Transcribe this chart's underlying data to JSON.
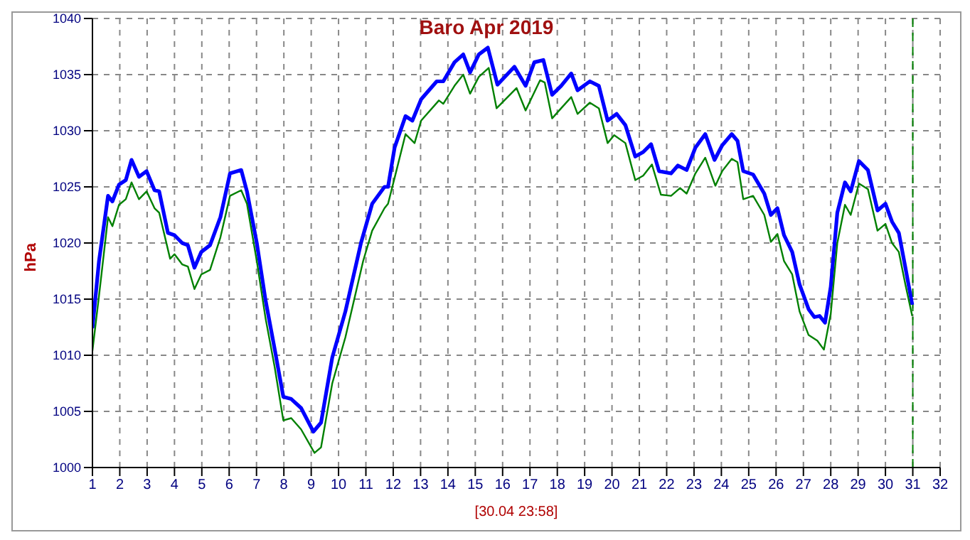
{
  "chart_data": {
    "type": "line",
    "title": "Baro Apr 2019",
    "ylabel": "hPa",
    "xlabel": "[30.04 23:58]",
    "xlim": [
      1,
      32
    ],
    "xticks": [
      1,
      2,
      3,
      4,
      5,
      6,
      7,
      8,
      9,
      10,
      11,
      12,
      13,
      14,
      15,
      16,
      17,
      18,
      19,
      20,
      21,
      22,
      23,
      24,
      25,
      26,
      27,
      28,
      29,
      30,
      31,
      32
    ],
    "ylim": [
      1000,
      1040
    ],
    "yticks": [
      1000,
      1005,
      1010,
      1015,
      1020,
      1025,
      1030,
      1035,
      1040
    ],
    "grid": true,
    "ref_lines": [
      {
        "axis": "x",
        "value": 31,
        "color": "#008000",
        "line_style": "dashed"
      }
    ],
    "series": [
      {
        "color": "#0000ff",
        "x": [
          1.0,
          1.24,
          1.57,
          1.73,
          1.97,
          2.22,
          2.43,
          2.7,
          2.98,
          3.27,
          3.44,
          3.76,
          4.0,
          4.28,
          4.49,
          4.73,
          4.98,
          5.3,
          5.68,
          6.03,
          6.44,
          6.65,
          7.01,
          7.33,
          7.66,
          7.98,
          8.27,
          8.63,
          9.08,
          9.36,
          9.77,
          10.25,
          10.82,
          11.23,
          11.68,
          11.81,
          12.05,
          12.45,
          12.7,
          13.02,
          13.59,
          13.83,
          14.24,
          14.56,
          14.81,
          15.13,
          15.46,
          15.81,
          16.43,
          16.84,
          17.16,
          17.49,
          17.81,
          18.14,
          18.51,
          18.74,
          19.19,
          19.52,
          19.84,
          20.17,
          20.49,
          20.85,
          21.14,
          21.43,
          21.72,
          22.16,
          22.41,
          22.73,
          23.05,
          23.41,
          23.75,
          24.03,
          24.38,
          24.59,
          24.8,
          25.16,
          25.57,
          25.81,
          26.05,
          26.29,
          26.59,
          26.86,
          27.19,
          27.4,
          27.59,
          27.79,
          28.0,
          28.24,
          28.52,
          28.73,
          29.03,
          29.36,
          29.71,
          30.0,
          30.24,
          30.49,
          30.73,
          30.98
        ],
        "values": [
          1012.4,
          1018.4,
          1024.2,
          1023.7,
          1025.2,
          1025.6,
          1027.4,
          1025.9,
          1026.4,
          1024.7,
          1024.6,
          1020.9,
          1020.7,
          1020.0,
          1019.8,
          1017.8,
          1019.2,
          1019.8,
          1022.3,
          1026.2,
          1026.5,
          1024.6,
          1020.0,
          1014.9,
          1010.6,
          1006.3,
          1006.1,
          1005.3,
          1003.2,
          1004.0,
          1009.8,
          1013.9,
          1020.0,
          1023.5,
          1025.0,
          1025.0,
          1028.5,
          1031.3,
          1030.9,
          1032.8,
          1034.4,
          1034.4,
          1036.1,
          1036.8,
          1035.2,
          1036.8,
          1037.4,
          1034.1,
          1035.7,
          1034.0,
          1036.1,
          1036.3,
          1033.2,
          1034.0,
          1035.1,
          1033.6,
          1034.4,
          1034.0,
          1030.9,
          1031.5,
          1030.5,
          1027.7,
          1028.1,
          1028.8,
          1026.4,
          1026.2,
          1026.9,
          1026.5,
          1028.5,
          1029.7,
          1027.4,
          1028.7,
          1029.7,
          1029.1,
          1026.4,
          1026.1,
          1024.4,
          1022.5,
          1023.1,
          1020.7,
          1019.2,
          1016.3,
          1014.1,
          1013.4,
          1013.5,
          1012.9,
          1016.1,
          1022.7,
          1025.4,
          1024.6,
          1027.3,
          1026.5,
          1022.9,
          1023.5,
          1021.9,
          1020.9,
          1017.8,
          1014.5
        ]
      },
      {
        "color": "#008000",
        "x": [
          1.0,
          1.24,
          1.57,
          1.73,
          1.97,
          2.22,
          2.43,
          2.7,
          2.98,
          3.27,
          3.44,
          3.84,
          4.0,
          4.28,
          4.49,
          4.73,
          4.98,
          5.3,
          5.68,
          6.03,
          6.44,
          6.65,
          7.01,
          7.33,
          7.66,
          7.98,
          8.27,
          8.63,
          9.12,
          9.36,
          9.77,
          10.25,
          10.9,
          11.23,
          11.68,
          11.81,
          12.05,
          12.45,
          12.78,
          13.02,
          13.67,
          13.83,
          14.24,
          14.56,
          14.81,
          15.13,
          15.49,
          15.78,
          16.51,
          16.84,
          17.37,
          17.54,
          17.81,
          18.14,
          18.51,
          18.74,
          19.19,
          19.52,
          19.84,
          20.08,
          20.49,
          20.85,
          21.14,
          21.46,
          21.79,
          22.16,
          22.49,
          22.73,
          23.05,
          23.41,
          23.78,
          24.03,
          24.38,
          24.59,
          24.8,
          25.16,
          25.57,
          25.81,
          26.05,
          26.29,
          26.59,
          26.86,
          27.19,
          27.51,
          27.75,
          28.0,
          28.24,
          28.52,
          28.73,
          29.03,
          29.36,
          29.71,
          30.0,
          30.24,
          30.49,
          30.73,
          30.98
        ],
        "values": [
          1010.4,
          1015.3,
          1022.3,
          1021.5,
          1023.4,
          1023.9,
          1025.4,
          1023.9,
          1024.6,
          1023.1,
          1022.7,
          1018.6,
          1019.0,
          1018.1,
          1017.9,
          1015.9,
          1017.2,
          1017.6,
          1020.5,
          1024.2,
          1024.7,
          1023.5,
          1018.4,
          1013.3,
          1009.0,
          1004.2,
          1004.4,
          1003.4,
          1001.3,
          1001.8,
          1007.5,
          1011.6,
          1018.4,
          1021.1,
          1023.1,
          1023.5,
          1025.8,
          1029.7,
          1028.9,
          1030.9,
          1032.7,
          1032.4,
          1034.0,
          1035.0,
          1033.3,
          1034.8,
          1035.6,
          1032.0,
          1033.8,
          1031.8,
          1034.5,
          1034.3,
          1031.1,
          1032.0,
          1033.0,
          1031.5,
          1032.5,
          1032.0,
          1028.9,
          1029.6,
          1028.9,
          1025.6,
          1026.0,
          1027.0,
          1024.3,
          1024.2,
          1024.9,
          1024.4,
          1026.2,
          1027.6,
          1025.1,
          1026.4,
          1027.5,
          1027.2,
          1023.9,
          1024.2,
          1022.5,
          1020.1,
          1020.8,
          1018.4,
          1017.2,
          1013.9,
          1011.8,
          1011.3,
          1010.5,
          1013.7,
          1020.0,
          1023.4,
          1022.5,
          1025.3,
          1024.8,
          1021.1,
          1021.7,
          1020.0,
          1019.2,
          1016.3,
          1013.5
        ]
      }
    ]
  }
}
